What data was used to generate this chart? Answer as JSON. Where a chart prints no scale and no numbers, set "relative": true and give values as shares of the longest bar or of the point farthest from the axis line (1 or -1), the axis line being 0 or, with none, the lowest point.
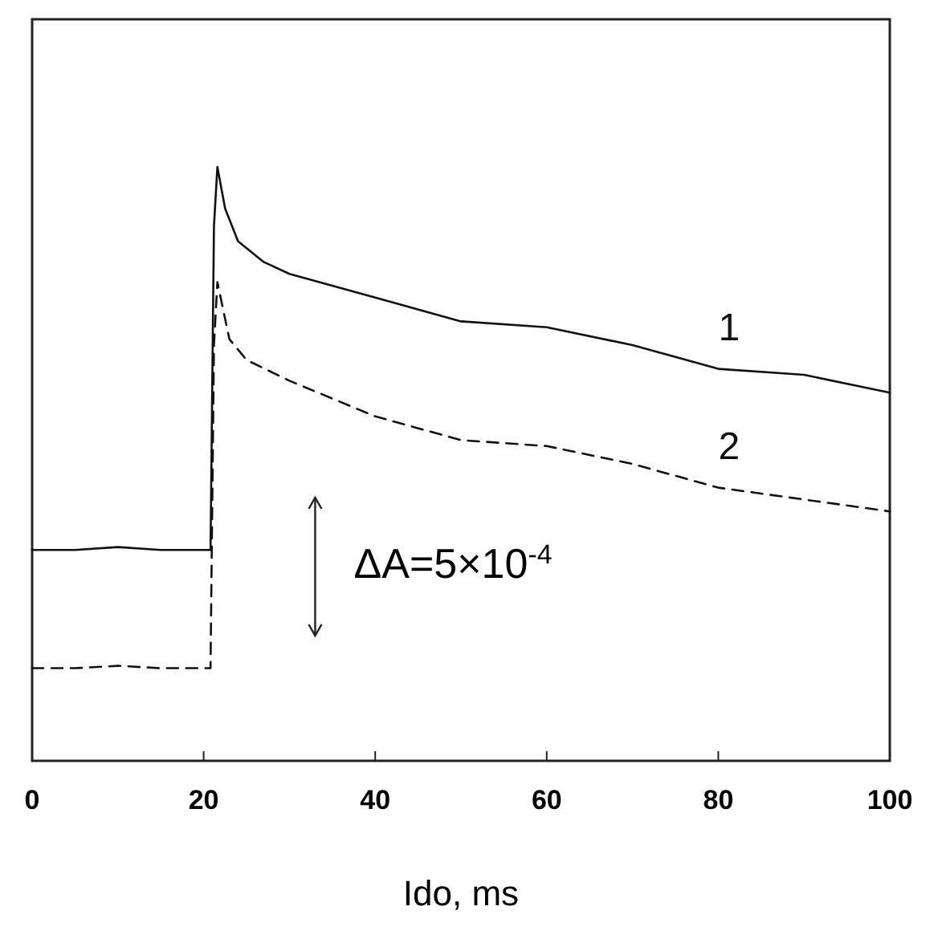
{
  "chart_data": {
    "type": "line",
    "relative": true,
    "xlabel": "Ido, ms",
    "xlim": [
      0,
      100
    ],
    "xticks": [
      0,
      20,
      40,
      60,
      80,
      100
    ],
    "grid": false,
    "marker": "none",
    "series": [
      {
        "name": "1",
        "color": "#111111",
        "line_style": "solid",
        "x": [
          0,
          5,
          10,
          15,
          20.8,
          21.2,
          21.6,
          22.5,
          24,
          27,
          30,
          40,
          50,
          60,
          70,
          80,
          90,
          100
        ],
        "values": [
          0.355,
          0.355,
          0.36,
          0.355,
          0.355,
          0.9,
          1,
          0.93,
          0.875,
          0.84,
          0.82,
          0.78,
          0.74,
          0.73,
          0.7,
          0.66,
          0.65,
          0.62
        ]
      },
      {
        "name": "2",
        "color": "#111111",
        "line_style": "dashed",
        "x": [
          0,
          5,
          10,
          15,
          20.8,
          21.2,
          21.6,
          23,
          25,
          30,
          40,
          50,
          60,
          70,
          80,
          90,
          100
        ],
        "values": [
          0.156,
          0.156,
          0.16,
          0.156,
          0.156,
          0.7,
          0.806,
          0.71,
          0.675,
          0.64,
          0.58,
          0.54,
          0.53,
          0.5,
          0.46,
          0.44,
          0.42
        ]
      }
    ],
    "annotations": [
      "ΔA=5×10$^{-4}$"
    ]
  }
}
